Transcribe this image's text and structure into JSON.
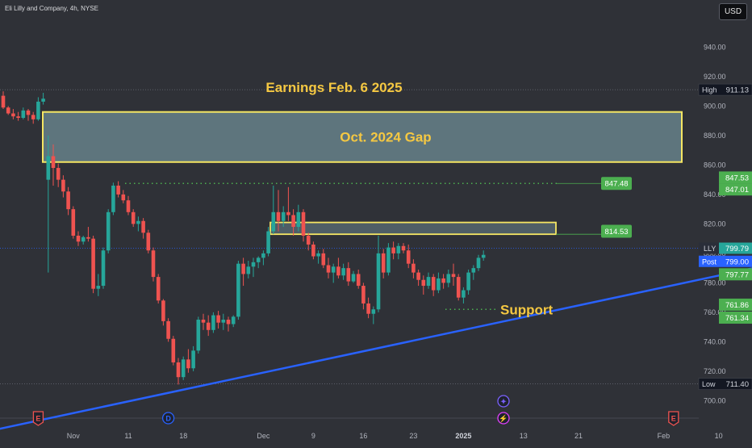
{
  "header": {
    "title": "Eli Lilly and Company, 4h, NYSE",
    "currency": "USD"
  },
  "chart_data": {
    "type": "candlestick",
    "ylim": [
      695,
      948
    ],
    "y_ticks": [
      700,
      720,
      740,
      760,
      780,
      800,
      820,
      840,
      860,
      880,
      900,
      920,
      940
    ],
    "x_ticks": [
      {
        "label": "Nov",
        "bar": 14
      },
      {
        "label": "11",
        "bar": 25
      },
      {
        "label": "18",
        "bar": 36
      },
      {
        "label": "Dec",
        "bar": 52
      },
      {
        "label": "9",
        "bar": 62
      },
      {
        "label": "16",
        "bar": 72
      },
      {
        "label": "23",
        "bar": 82
      },
      {
        "label": "2025",
        "bar": 92
      },
      {
        "label": "13",
        "bar": 104
      },
      {
        "label": "21",
        "bar": 115
      },
      {
        "label": "Feb",
        "bar": 132
      },
      {
        "label": "10",
        "bar": 143
      }
    ],
    "candles": [
      [
        907,
        910,
        898,
        899
      ],
      [
        899,
        900,
        894,
        895
      ],
      [
        895,
        898,
        891,
        893
      ],
      [
        893,
        896,
        890,
        892
      ],
      [
        892,
        899,
        891,
        897
      ],
      [
        897,
        898,
        890,
        894
      ],
      [
        894,
        896,
        888,
        891
      ],
      [
        891,
        906,
        890,
        903
      ],
      [
        903,
        909,
        901,
        905
      ],
      [
        850,
        880,
        787,
        866
      ],
      [
        866,
        874,
        846,
        858
      ],
      [
        858,
        861,
        845,
        850
      ],
      [
        850,
        853,
        838,
        842
      ],
      [
        842,
        845,
        826,
        830
      ],
      [
        830,
        832,
        810,
        812
      ],
      [
        812,
        815,
        805,
        808
      ],
      [
        808,
        812,
        806,
        811
      ],
      [
        811,
        818,
        808,
        810
      ],
      [
        810,
        812,
        773,
        776
      ],
      [
        776,
        786,
        771,
        778
      ],
      [
        778,
        804,
        776,
        802
      ],
      [
        802,
        830,
        800,
        828
      ],
      [
        828,
        848,
        826,
        846
      ],
      [
        846,
        849,
        838,
        840
      ],
      [
        840,
        843,
        834,
        836
      ],
      [
        836,
        839,
        826,
        828
      ],
      [
        828,
        830,
        818,
        820
      ],
      [
        820,
        825,
        815,
        822
      ],
      [
        822,
        824,
        810,
        814
      ],
      [
        814,
        816,
        800,
        802
      ],
      [
        802,
        804,
        781,
        784
      ],
      [
        784,
        786,
        766,
        768
      ],
      [
        768,
        769,
        751,
        754
      ],
      [
        754,
        756,
        740,
        742
      ],
      [
        742,
        744,
        724,
        726
      ],
      [
        726,
        729,
        711,
        716
      ],
      [
        716,
        730,
        714,
        728
      ],
      [
        728,
        735,
        719,
        722
      ],
      [
        722,
        737,
        720,
        734
      ],
      [
        734,
        757,
        732,
        755
      ],
      [
        755,
        759,
        748,
        753
      ],
      [
        753,
        758,
        744,
        748
      ],
      [
        748,
        760,
        746,
        758
      ],
      [
        758,
        761,
        749,
        753
      ],
      [
        753,
        759,
        748,
        755
      ],
      [
        755,
        757,
        747,
        752
      ],
      [
        752,
        758,
        750,
        757
      ],
      [
        757,
        795,
        755,
        793
      ],
      [
        793,
        797,
        778,
        786
      ],
      [
        786,
        795,
        783,
        791
      ],
      [
        791,
        797,
        784,
        794
      ],
      [
        794,
        798,
        790,
        797
      ],
      [
        797,
        802,
        792,
        800
      ],
      [
        800,
        818,
        798,
        815
      ],
      [
        815,
        846,
        813,
        828
      ],
      [
        828,
        843,
        815,
        822
      ],
      [
        822,
        832,
        818,
        828
      ],
      [
        828,
        845,
        822,
        826
      ],
      [
        826,
        830,
        812,
        818
      ],
      [
        818,
        833,
        815,
        828
      ],
      [
        828,
        830,
        808,
        812
      ],
      [
        812,
        814,
        802,
        806
      ],
      [
        806,
        808,
        796,
        798
      ],
      [
        798,
        802,
        793,
        800
      ],
      [
        800,
        803,
        790,
        792
      ],
      [
        792,
        797,
        783,
        787
      ],
      [
        787,
        793,
        780,
        791
      ],
      [
        791,
        797,
        783,
        785
      ],
      [
        785,
        793,
        782,
        790
      ],
      [
        790,
        794,
        778,
        781
      ],
      [
        781,
        788,
        780,
        786
      ],
      [
        786,
        789,
        776,
        778
      ],
      [
        778,
        780,
        762,
        766
      ],
      [
        766,
        770,
        756,
        759
      ],
      [
        759,
        764,
        752,
        762
      ],
      [
        762,
        812,
        760,
        800
      ],
      [
        800,
        803,
        783,
        787
      ],
      [
        787,
        807,
        785,
        804
      ],
      [
        804,
        808,
        796,
        800
      ],
      [
        800,
        807,
        796,
        805
      ],
      [
        805,
        807,
        800,
        802
      ],
      [
        802,
        806,
        790,
        793
      ],
      [
        793,
        796,
        783,
        787
      ],
      [
        787,
        789,
        778,
        782
      ],
      [
        782,
        785,
        772,
        778
      ],
      [
        778,
        787,
        776,
        784
      ],
      [
        784,
        786,
        771,
        775
      ],
      [
        775,
        787,
        773,
        783
      ],
      [
        783,
        786,
        776,
        780
      ],
      [
        780,
        789,
        777,
        786
      ],
      [
        786,
        793,
        778,
        784
      ],
      [
        784,
        786,
        768,
        770
      ],
      [
        770,
        777,
        766,
        775
      ],
      [
        775,
        789,
        772,
        787
      ],
      [
        787,
        792,
        782,
        790
      ],
      [
        790,
        799,
        788,
        797
      ],
      [
        797,
        802,
        795,
        799
      ]
    ],
    "annotations": {
      "earnings_label": "Earnings Feb. 6 2025",
      "gap_label": "Oct. 2024 Gap",
      "gap_zone": [
        862,
        896
      ],
      "resistance_zone": [
        813,
        821
      ],
      "level_847": "847.48",
      "level_814": "814.53",
      "support_label": "Support",
      "support_level": 762,
      "trendline": {
        "from": [
          -2,
          680
        ],
        "to": [
          150,
          790
        ]
      }
    },
    "price_labels": [
      {
        "text": "High",
        "value": "911.13",
        "y": 911.13,
        "kind": "dark"
      },
      {
        "text": "",
        "value": "847.53",
        "y": 851.5,
        "kind": "green"
      },
      {
        "text": "",
        "value": "847.01",
        "y": 843.4,
        "kind": "green"
      },
      {
        "text": "LLY",
        "value": "799.79",
        "y": 803.5,
        "kind": "lly"
      },
      {
        "text": "Post",
        "value": "799.00",
        "y": 794.6,
        "kind": "post"
      },
      {
        "text": "",
        "value": "797.77",
        "y": 785.8,
        "kind": "green"
      },
      {
        "text": "",
        "value": "761.86",
        "y": 765.2,
        "kind": "green"
      },
      {
        "text": "",
        "value": "761.34",
        "y": 756.4,
        "kind": "green"
      },
      {
        "text": "Low",
        "value": "711.40",
        "y": 711.4,
        "kind": "dark"
      }
    ],
    "markers": [
      {
        "bar": 7,
        "letter": "E",
        "kind": "earnings"
      },
      {
        "bar": 33,
        "letter": "D",
        "kind": "dividend"
      },
      {
        "bar": 100,
        "letter": "✦",
        "kind": "event"
      },
      {
        "bar": 100,
        "letter": "⚡",
        "kind": "split"
      },
      {
        "bar": 134,
        "letter": "E",
        "kind": "earnings"
      }
    ],
    "colors": {
      "up": "#26a69a",
      "down": "#ef5350",
      "trend": "#2962ff",
      "zone": "#f5e663",
      "zone_fill": "#6f8c96",
      "label_text": "#f5c842",
      "green_box": "#4caf50"
    }
  }
}
